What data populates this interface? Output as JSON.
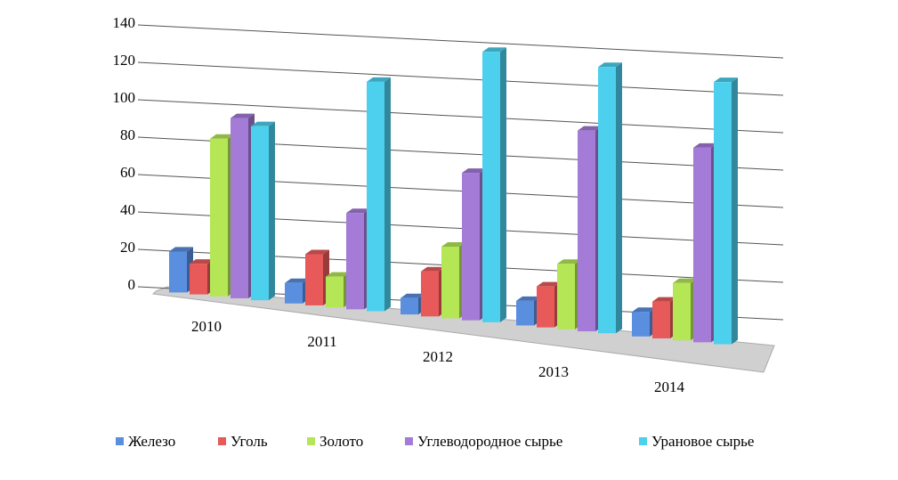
{
  "chart_data": {
    "type": "bar3d",
    "categories": [
      "2010",
      "2011",
      "2012",
      "2013",
      "2014"
    ],
    "series": [
      {
        "name": "Железо",
        "color": "#5a8fe0",
        "values": [
          20,
          10,
          8,
          12,
          12
        ]
      },
      {
        "name": "Уголь",
        "color": "#e85a5a",
        "values": [
          15,
          25,
          22,
          20,
          18
        ]
      },
      {
        "name": "Золото",
        "color": "#b4e655",
        "values": [
          77,
          15,
          35,
          32,
          28
        ]
      },
      {
        "name": "Углеводородное сырье",
        "color": "#a47bd6",
        "values": [
          88,
          47,
          72,
          98,
          95
        ]
      },
      {
        "name": "Урановое сырье",
        "color": "#4cd0ee",
        "values": [
          85,
          112,
          132,
          130,
          128
        ]
      }
    ],
    "ylim": [
      0,
      140
    ],
    "yticks": [
      0,
      20,
      40,
      60,
      80,
      100,
      120,
      140
    ],
    "grid": true
  }
}
